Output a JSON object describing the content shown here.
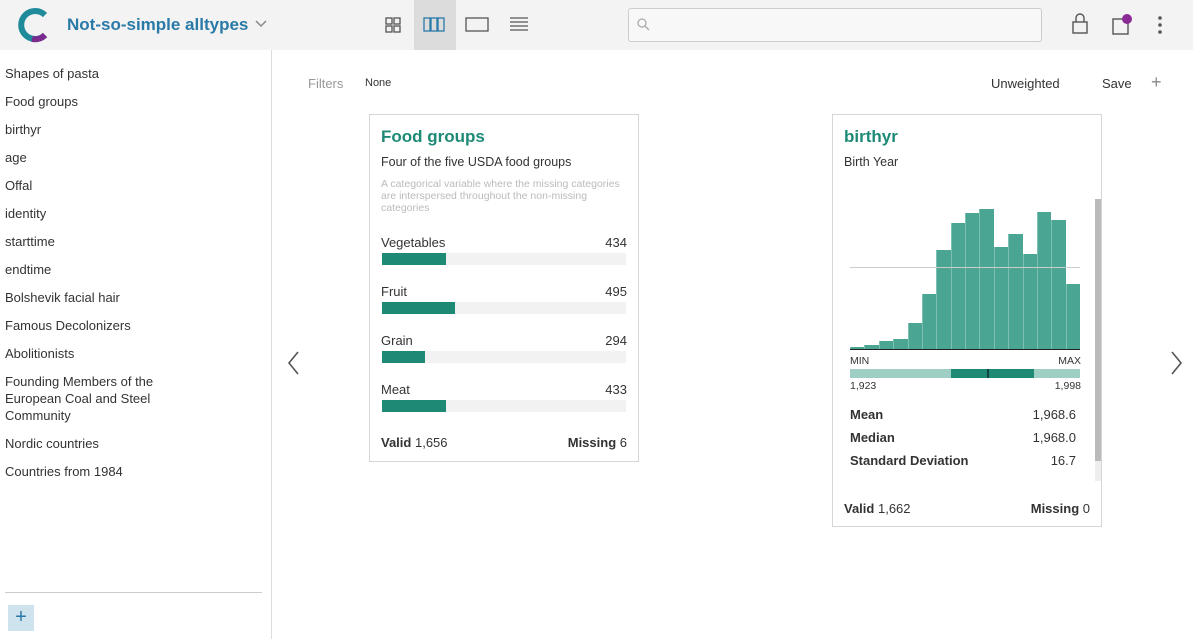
{
  "header": {
    "title": "Not-so-simple alltypes"
  },
  "sidebar": {
    "items": [
      "Shapes of pasta",
      "Food groups",
      "birthyr",
      "age",
      "Offal",
      "identity",
      "starttime",
      "endtime",
      "Bolshevik facial hair",
      "Famous Decolonizers",
      "Abolitionists",
      "Founding Members of the European Coal and Steel Community",
      "Nordic countries",
      "Countries from 1984"
    ]
  },
  "toolbar": {
    "filters_label": "Filters",
    "filters_value": "None",
    "weight": "Unweighted",
    "save": "Save"
  },
  "cards": [
    {
      "title": "Food groups",
      "subtitle": "Four of the five USDA food groups",
      "description": "A categorical variable where the missing categories are interspersed throughout the non-missing categories",
      "categories": [
        "Vegetables",
        "Fruit",
        "Grain",
        "Meat"
      ],
      "values": [
        434,
        495,
        294,
        433
      ],
      "valid_label": "Valid",
      "valid": "1,656",
      "missing_label": "Missing",
      "missing": "6"
    },
    {
      "title": "birthyr",
      "subtitle": "Birth Year",
      "histogram": [
        2,
        4,
        8,
        10,
        26,
        55,
        99,
        126,
        136,
        140,
        102,
        115,
        95,
        137,
        129,
        65
      ],
      "min_label": "MIN",
      "max_label": "MAX",
      "min": "1,923",
      "max": "1,998",
      "stats": [
        [
          "Mean",
          "1,968.6"
        ],
        [
          "Median",
          "1,968.0"
        ],
        [
          "Standard Deviation",
          "16.7"
        ]
      ],
      "valid_label": "Valid",
      "valid": "1,662",
      "missing_label": "Missing",
      "missing": "0"
    }
  ]
}
